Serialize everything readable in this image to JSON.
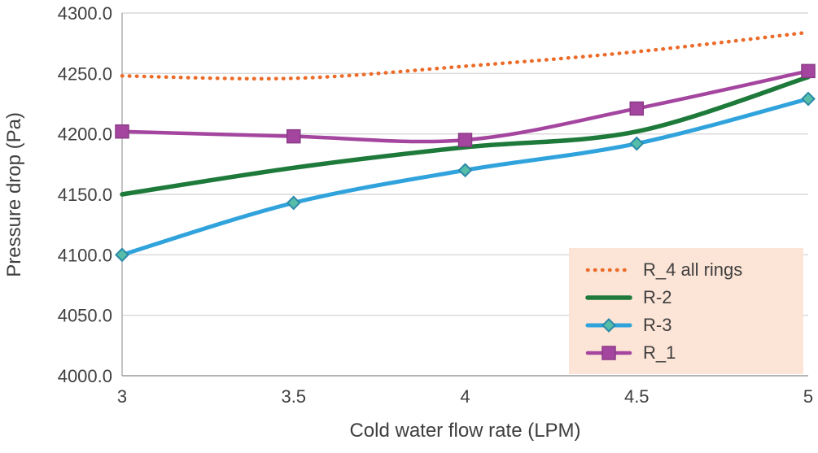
{
  "chart_data": {
    "type": "line",
    "title": "",
    "xlabel": "Cold water flow rate (LPM)",
    "ylabel": "Pressure drop (Pa)",
    "x": [
      3,
      3.5,
      4,
      4.5,
      5
    ],
    "xtick_labels": [
      "3",
      "3.5",
      "4",
      "4.5",
      "5"
    ],
    "ytick_labels": [
      "4000.0",
      "4050.0",
      "4100.0",
      "4150.0",
      "4200.0",
      "4250.0",
      "4300.0"
    ],
    "xlim": [
      3,
      5
    ],
    "ylim": [
      4000,
      4300
    ],
    "grid": "horizontal",
    "legend_position": "inside-bottom-right",
    "legend_bg": "#FCE4D6",
    "grid_color": "#D9D9D9",
    "axis_color": "#9C9C9C",
    "text_color": "#3F3F3F",
    "series": [
      {
        "name": "R_4 all rings",
        "values": [
          4248,
          4246,
          4256,
          4268,
          4284
        ],
        "color": "#EC6B29",
        "style": "dotted",
        "marker": "none",
        "width": 4.5
      },
      {
        "name": "R-2",
        "values": [
          4150,
          4172,
          4189,
          4202,
          4247
        ],
        "color": "#1E7A3A",
        "style": "solid",
        "marker": "none",
        "width": 5.5
      },
      {
        "name": "R-3",
        "values": [
          4100,
          4143,
          4170,
          4192,
          4229
        ],
        "color": "#31A3DC",
        "style": "solid",
        "marker": "diamond",
        "marker_fill": "#56BEA8",
        "marker_stroke": "#2B89A8",
        "width": 5
      },
      {
        "name": "R_1",
        "values": [
          4202,
          4198,
          4195,
          4221,
          4252
        ],
        "color": "#A4469F",
        "style": "solid",
        "marker": "square",
        "marker_fill": "#A4469F",
        "marker_stroke": "#8A3A86",
        "width": 4.5
      }
    ]
  }
}
